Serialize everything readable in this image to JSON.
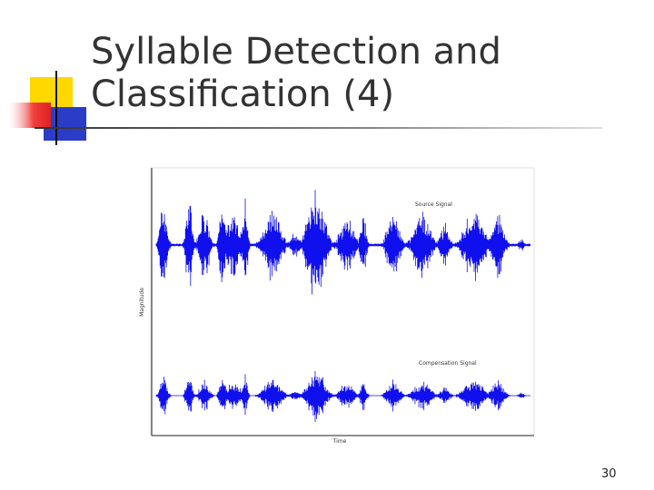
{
  "slide": {
    "title_lines": [
      "Syllable Detection and",
      "Classification (4)"
    ],
    "figure": {
      "source_label": "Source Signal",
      "compensation_label": "Compensation Signal",
      "y_label": "Magnitude",
      "x_label": "Time"
    },
    "page_number": "30"
  }
}
